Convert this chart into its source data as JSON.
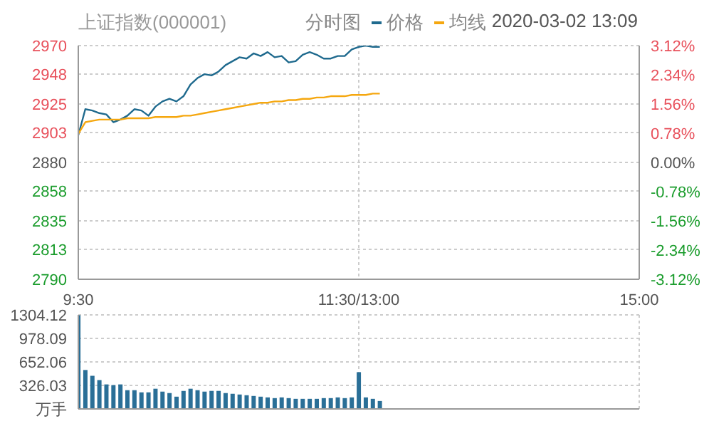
{
  "chart_data": [
    {
      "type": "line",
      "title": "上证指数(000001)",
      "legend_title": "分时图",
      "legend": "top right",
      "annotations": [
        "2020-03-02 13:09"
      ],
      "grid": true,
      "categories": [
        "9:30",
        null,
        null,
        null,
        null,
        null,
        null,
        null,
        null,
        null,
        null,
        null,
        null,
        null,
        null,
        null,
        null,
        null,
        null,
        null,
        null,
        null,
        null,
        null,
        null,
        null,
        null,
        null,
        null,
        null,
        null,
        null,
        null,
        null,
        null,
        null,
        null,
        null,
        null,
        null,
        "11:30/13:00",
        null,
        null,
        null,
        null,
        null,
        null,
        null,
        null,
        null,
        null,
        null,
        null,
        null,
        null,
        null,
        null,
        null,
        null,
        null,
        null,
        null,
        null,
        null,
        null,
        null,
        null,
        null,
        null,
        null,
        null,
        null,
        null,
        null,
        null,
        null,
        null,
        null,
        null,
        null,
        "15:00"
      ],
      "ylim": [
        2790,
        2970
      ],
      "yticks": [
        2970,
        2948,
        2925,
        2903,
        2880,
        2858,
        2835,
        2813,
        2790
      ],
      "y2lim": [
        -3.12,
        3.12
      ],
      "y2ticks": [
        {
          "value": 3.12,
          "label": "3.12%"
        },
        {
          "value": 2.34,
          "label": "2.34%"
        },
        {
          "value": 1.56,
          "label": "1.56%"
        },
        {
          "value": 0.78,
          "label": "0.78%"
        },
        {
          "value": 0,
          "label": "0.00%"
        },
        {
          "value": -0.78,
          "label": "-0.78%"
        },
        {
          "value": -1.56,
          "label": "-1.56%"
        },
        {
          "value": -2.34,
          "label": "-2.34%"
        },
        {
          "value": -3.12,
          "label": "-3.12%"
        }
      ],
      "series": [
        {
          "name": "价格",
          "color": "#1f6a8e",
          "values": [
            2901,
            2921,
            2920,
            2918,
            2917,
            2911,
            2913,
            2916,
            2921,
            2920,
            2916,
            2923,
            2927,
            2929,
            2927,
            2931,
            2940,
            2945,
            2948,
            2947,
            2950,
            2955,
            2958,
            2961,
            2960,
            2964,
            2962,
            2965,
            2961,
            2962,
            2957,
            2958,
            2963,
            2965,
            2963,
            2960,
            2960,
            2962,
            2962,
            2967,
            2969,
            2970,
            2969,
            2969,
            null,
            null,
            null,
            null,
            null,
            null,
            null,
            null,
            null,
            null,
            null,
            null,
            null,
            null,
            null,
            null,
            null,
            null,
            null,
            null,
            null,
            null,
            null,
            null,
            null,
            null,
            null,
            null,
            null,
            null,
            null,
            null,
            null,
            null,
            null,
            null,
            null
          ]
        },
        {
          "name": "均线",
          "color": "#f5a70f",
          "values": [
            2902,
            2911,
            2912,
            2913,
            2913,
            2913,
            2913,
            2914,
            2914,
            2914,
            2914,
            2915,
            2915,
            2915,
            2915,
            2916,
            2916,
            2917,
            2918,
            2919,
            2920,
            2921,
            2922,
            2923,
            2924,
            2925,
            2926,
            2926,
            2927,
            2927,
            2928,
            2928,
            2929,
            2929,
            2930,
            2930,
            2931,
            2931,
            2931,
            2932,
            2932,
            2932,
            2933,
            2933,
            null,
            null,
            null,
            null,
            null,
            null,
            null,
            null,
            null,
            null,
            null,
            null,
            null,
            null,
            null,
            null,
            null,
            null,
            null,
            null,
            null,
            null,
            null,
            null,
            null,
            null,
            null,
            null,
            null,
            null,
            null,
            null,
            null,
            null,
            null,
            null,
            null
          ]
        }
      ]
    },
    {
      "type": "bar",
      "grid": true,
      "categories": [
        null,
        null,
        null,
        null,
        null,
        null,
        null,
        null,
        null,
        null,
        null,
        null,
        null,
        null,
        null,
        null,
        null,
        null,
        null,
        null,
        null,
        null,
        null,
        null,
        null,
        null,
        null,
        null,
        null,
        null,
        null,
        null,
        null,
        null,
        null,
        null,
        null,
        null,
        null,
        null,
        null,
        null,
        null,
        null,
        null,
        null,
        null,
        null,
        null,
        null,
        null,
        null,
        null,
        null,
        null,
        null,
        null,
        null,
        null,
        null,
        null,
        null,
        null,
        null,
        null,
        null,
        null,
        null,
        null,
        null,
        null,
        null,
        null,
        null,
        null,
        null,
        null,
        null,
        null,
        null,
        null
      ],
      "values": [
        1300,
        540,
        460,
        400,
        340,
        330,
        340,
        260,
        260,
        230,
        230,
        280,
        240,
        220,
        170,
        250,
        280,
        260,
        240,
        250,
        250,
        220,
        210,
        200,
        190,
        180,
        170,
        160,
        150,
        160,
        150,
        140,
        140,
        140,
        140,
        150,
        150,
        160,
        150,
        160,
        510,
        160,
        140,
        110,
        null,
        null,
        null,
        null,
        null,
        null,
        null,
        null,
        null,
        null,
        null,
        null,
        null,
        null,
        null,
        null,
        null,
        null,
        null,
        null,
        null,
        null,
        null,
        null,
        null,
        null,
        null,
        null,
        null,
        null,
        null,
        null,
        null,
        null,
        null,
        null,
        null
      ],
      "color": "#2a6f97",
      "ylim": [
        0,
        1304.12
      ],
      "yticks": [
        {
          "value": 0,
          "label": "万手"
        },
        326.03,
        652.06,
        978.09,
        1304.12
      ]
    }
  ]
}
